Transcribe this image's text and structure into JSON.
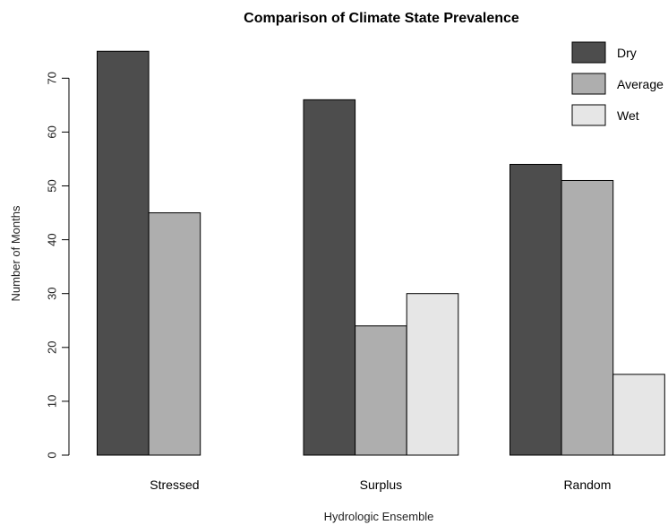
{
  "chart_data": {
    "type": "bar",
    "title": "Comparison of Climate State Prevalence",
    "xlabel": "Hydrologic Ensemble",
    "ylabel": "Number of Months",
    "categories": [
      "Stressed",
      "Surplus",
      "Random"
    ],
    "series": [
      {
        "name": "Dry",
        "values": [
          75,
          66,
          54
        ],
        "color": "#4d4d4d"
      },
      {
        "name": "Average",
        "values": [
          45,
          24,
          51
        ],
        "color": "#aeaeae"
      },
      {
        "name": "Wet",
        "values": [
          0,
          30,
          15
        ],
        "color": "#e6e6e6"
      }
    ],
    "yticks": [
      0,
      10,
      20,
      30,
      40,
      50,
      60,
      70
    ],
    "ylim": [
      0,
      75
    ],
    "legend_position": "top-right",
    "grid": false
  }
}
